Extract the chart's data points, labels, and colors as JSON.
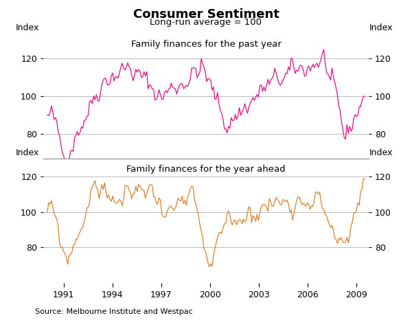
{
  "title": "Consumer Sentiment",
  "subtitle": "Long-run average = 100",
  "source": "Source: Melbourne Institute and Westpac",
  "panel1_label": "Family finances for the past year",
  "panel2_label": "Family finances for the year ahead",
  "ylabel": "Index",
  "color1": "#E8007D",
  "color2": "#E07820",
  "xlim_start": 1989.75,
  "xlim_end": 2009.75,
  "xticks": [
    1991,
    1994,
    1997,
    2000,
    2003,
    2006,
    2009
  ],
  "panel1_ylim": [
    67,
    133
  ],
  "panel1_yticks": [
    80,
    100,
    120
  ],
  "panel2_ylim": [
    60,
    130
  ],
  "panel2_yticks": [
    80,
    100,
    120
  ],
  "background_color": "#ffffff",
  "grid_color": "#bbbbbb"
}
